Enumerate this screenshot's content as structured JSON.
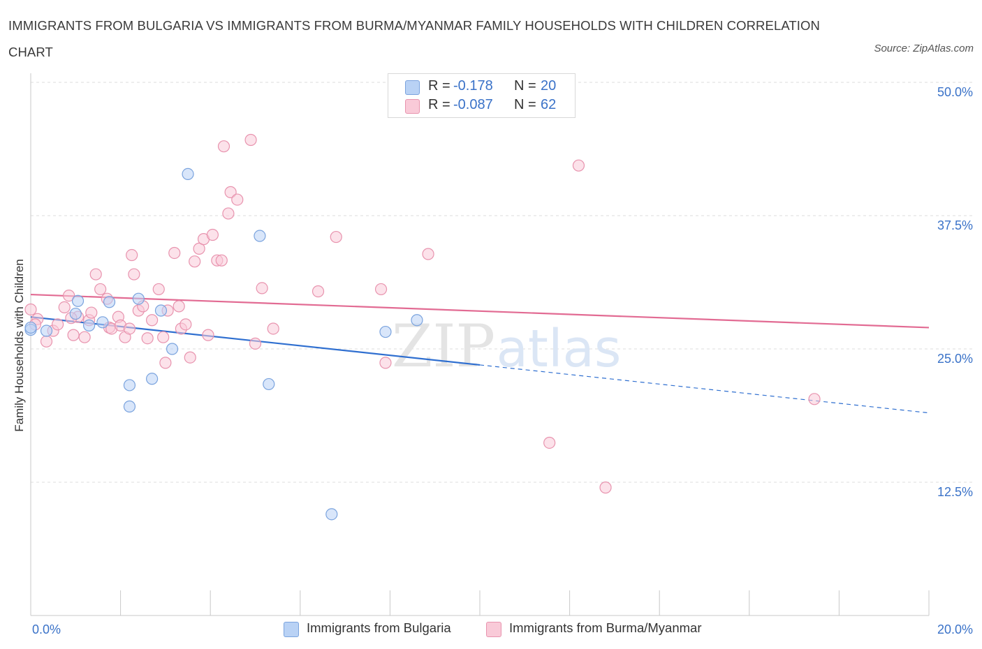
{
  "header": {
    "title": "IMMIGRANTS FROM BULGARIA VS IMMIGRANTS FROM BURMA/MYANMAR FAMILY HOUSEHOLDS WITH CHILDREN CORRELATION CHART",
    "source": "Source: ZipAtlas.com"
  },
  "legend": {
    "rows": [
      {
        "r_label": "R =",
        "r_value": "-0.178",
        "n_label": "N =",
        "n_value": "20"
      },
      {
        "r_label": "R =",
        "r_value": "-0.087",
        "n_label": "N =",
        "n_value": "62"
      }
    ]
  },
  "watermark": {
    "zip": "ZIP",
    "atlas": "atlas"
  },
  "colors": {
    "bulgaria_fill": "#b9d2f5",
    "bulgaria_stroke": "#7aa3de",
    "bulgaria_line": "#2f6fd0",
    "burma_fill": "#f9cad8",
    "burma_stroke": "#e893ae",
    "burma_line": "#e26b93",
    "axis_text": "#3a72c8",
    "grid": "#dcdcdc"
  },
  "chart_data": {
    "type": "scatter",
    "title": "IMMIGRANTS FROM BULGARIA VS IMMIGRANTS FROM BURMA/MYANMAR FAMILY HOUSEHOLDS WITH CHILDREN CORRELATION CHART",
    "xlabel": "",
    "ylabel": "Family Households with Children",
    "xlim": [
      0,
      20
    ],
    "ylim": [
      0,
      50
    ],
    "x_tick_labels": [
      "0.0%",
      "20.0%"
    ],
    "y_ticks": [
      12.5,
      25.0,
      37.5,
      50.0
    ],
    "y_tick_labels": [
      "12.5%",
      "25.0%",
      "37.5%",
      "50.0%"
    ],
    "grid": true,
    "legend_position": "top-center",
    "series": [
      {
        "name": "Immigrants from Bulgaria",
        "R": -0.178,
        "N": 20,
        "trend": {
          "x0": 0,
          "y0": 28.0,
          "x1": 10.0,
          "y1": 23.5,
          "dashed_to_x": 20,
          "dashed_to_y": 19.0
        },
        "points": [
          [
            0.0,
            26.8
          ],
          [
            0.35,
            26.7
          ],
          [
            1.0,
            28.3
          ],
          [
            1.05,
            29.5
          ],
          [
            1.3,
            27.2
          ],
          [
            1.6,
            27.5
          ],
          [
            1.75,
            29.4
          ],
          [
            2.2,
            19.6
          ],
          [
            2.2,
            21.6
          ],
          [
            2.4,
            29.7
          ],
          [
            2.7,
            22.2
          ],
          [
            2.9,
            28.6
          ],
          [
            3.15,
            25.0
          ],
          [
            3.5,
            41.4
          ],
          [
            5.1,
            35.6
          ],
          [
            5.3,
            21.7
          ],
          [
            6.7,
            9.5
          ],
          [
            7.9,
            26.6
          ],
          [
            8.6,
            27.7
          ],
          [
            0.0,
            27.0
          ]
        ]
      },
      {
        "name": "Immigrants from Burma/Myanmar",
        "R": -0.087,
        "N": 62,
        "trend": {
          "x0": 0,
          "y0": 30.1,
          "x1": 20,
          "y1": 27.0
        },
        "points": [
          [
            0.0,
            28.7
          ],
          [
            0.15,
            27.8
          ],
          [
            0.35,
            25.7
          ],
          [
            0.5,
            26.7
          ],
          [
            0.6,
            27.3
          ],
          [
            0.75,
            28.9
          ],
          [
            0.85,
            30.0
          ],
          [
            0.95,
            26.3
          ],
          [
            1.05,
            28.0
          ],
          [
            1.2,
            26.1
          ],
          [
            1.3,
            27.7
          ],
          [
            1.35,
            28.4
          ],
          [
            1.45,
            32.0
          ],
          [
            1.55,
            30.6
          ],
          [
            1.7,
            29.7
          ],
          [
            1.75,
            27.0
          ],
          [
            1.8,
            26.9
          ],
          [
            1.95,
            28.0
          ],
          [
            2.0,
            27.2
          ],
          [
            2.1,
            26.1
          ],
          [
            2.2,
            26.9
          ],
          [
            2.25,
            33.8
          ],
          [
            2.3,
            32.0
          ],
          [
            2.4,
            28.6
          ],
          [
            2.5,
            29.0
          ],
          [
            2.6,
            26.0
          ],
          [
            2.7,
            27.7
          ],
          [
            2.85,
            30.6
          ],
          [
            2.95,
            26.1
          ],
          [
            3.0,
            23.7
          ],
          [
            3.05,
            28.6
          ],
          [
            3.2,
            34.0
          ],
          [
            3.3,
            29.0
          ],
          [
            3.35,
            26.9
          ],
          [
            3.45,
            27.3
          ],
          [
            3.55,
            24.2
          ],
          [
            3.65,
            33.2
          ],
          [
            3.75,
            34.4
          ],
          [
            3.85,
            35.3
          ],
          [
            3.95,
            26.3
          ],
          [
            4.05,
            35.7
          ],
          [
            4.15,
            33.3
          ],
          [
            4.25,
            33.3
          ],
          [
            4.3,
            44.0
          ],
          [
            4.4,
            37.7
          ],
          [
            4.45,
            39.7
          ],
          [
            4.6,
            39.0
          ],
          [
            4.9,
            44.6
          ],
          [
            5.0,
            25.5
          ],
          [
            5.15,
            30.7
          ],
          [
            5.4,
            26.9
          ],
          [
            6.4,
            30.4
          ],
          [
            6.8,
            35.5
          ],
          [
            7.8,
            30.6
          ],
          [
            7.9,
            23.7
          ],
          [
            8.85,
            33.9
          ],
          [
            11.55,
            16.2
          ],
          [
            12.2,
            42.2
          ],
          [
            12.8,
            12.0
          ],
          [
            17.45,
            20.3
          ],
          [
            0.1,
            27.3
          ],
          [
            0.9,
            27.9
          ]
        ]
      }
    ]
  },
  "bottom_legend": {
    "bulgaria": "Immigrants from Bulgaria",
    "burma": "Immigrants from Burma/Myanmar"
  }
}
